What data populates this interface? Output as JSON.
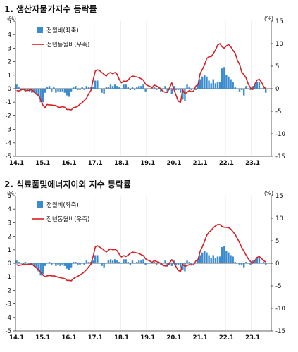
{
  "colors": {
    "bar": "#3b8ccf",
    "line": "#d42026",
    "grid": "#cfcfcf"
  },
  "chart_data": [
    {
      "type": "bar+line",
      "title": "1. 생산자물가지수 등락률",
      "unit_left": "(%)",
      "unit_right": "(%)",
      "x_tick_labels": [
        "14.1",
        "15.1",
        "16.1",
        "17.1",
        "18.1",
        "19.1",
        "20.1",
        "21.1",
        "22.1",
        "23.1"
      ],
      "ylim_left": [
        -5,
        5
      ],
      "ylim_right": [
        -15,
        15
      ],
      "y_ticks_left": [
        5,
        4,
        3,
        2,
        1,
        0,
        -1,
        -2,
        -3,
        -4,
        -5
      ],
      "y_ticks_right": [
        15,
        10,
        5,
        0,
        -5,
        -10,
        -15
      ],
      "legend": [
        "전월비(좌축)",
        "전년동월비(우축)"
      ],
      "series": [
        {
          "name": "전월비(좌축)",
          "axis": "left",
          "type": "bar",
          "values": [
            0.3,
            0.1,
            -0.1,
            -0.1,
            -0.2,
            -0.1,
            -0.2,
            -0.3,
            -0.3,
            -0.4,
            -0.5,
            -1.0,
            -1.0,
            -0.3,
            0.1,
            0.2,
            -0.2,
            0.1,
            -0.3,
            -0.2,
            -0.2,
            -0.2,
            -0.3,
            -0.5,
            -0.6,
            -0.2,
            0.1,
            0.2,
            -0.1,
            -0.1,
            0.1,
            -0.1,
            0.2,
            0.1,
            0.1,
            0.1,
            0.6,
            0.6,
            0.0,
            -0.3,
            -0.4,
            0.1,
            0.1,
            0.3,
            0.2,
            0.3,
            0.2,
            0.1,
            0.0,
            0.3,
            0.3,
            0.1,
            -0.1,
            0.1,
            -0.1,
            0.1,
            0.2,
            0.2,
            0.3,
            -0.2,
            0.0,
            0.0,
            0.0,
            0.1,
            -0.1,
            0.1,
            -0.2,
            0.0,
            0.2,
            -0.2,
            -0.1,
            -0.4,
            0.2,
            -0.1,
            -0.1,
            -0.3,
            -0.8,
            -0.9,
            0.3,
            0.1,
            -0.1,
            0.0,
            -0.1,
            0.3,
            0.7,
            0.9,
            1.0,
            0.9,
            0.6,
            0.4,
            0.7,
            0.4,
            0.5,
            0.5,
            1.5,
            1.6,
            1.0,
            0.9,
            0.7,
            0.5,
            0.1,
            0.0,
            -0.2,
            -0.1,
            -0.5,
            0.2,
            0.0,
            -0.1,
            0.2,
            0.3,
            0.5,
            0.5,
            0.0,
            0.1,
            -0.3
          ]
        },
        {
          "name": "전년동월비(우축)",
          "axis": "right",
          "type": "line",
          "values": [
            -0.4,
            -0.5,
            -0.3,
            -0.1,
            -0.4,
            -0.4,
            -0.3,
            -0.2,
            -0.7,
            -1.2,
            -1.5,
            -2.4,
            -3.6,
            -4.2,
            -3.5,
            -3.6,
            -3.6,
            -3.7,
            -3.7,
            -4.1,
            -4.1,
            -4.0,
            -4.1,
            -4.6,
            -4.6,
            -4.7,
            -4.2,
            -4.1,
            -3.9,
            -3.4,
            -3.1,
            -2.6,
            -2.1,
            -1.1,
            -0.4,
            1.9,
            3.9,
            4.2,
            4.0,
            3.6,
            3.2,
            2.8,
            3.4,
            3.6,
            3.3,
            3.6,
            3.2,
            2.0,
            1.3,
            1.7,
            1.6,
            1.9,
            2.5,
            2.8,
            2.7,
            2.6,
            2.5,
            2.2,
            1.9,
            1.0,
            0.7,
            0.5,
            0.2,
            0.8,
            0.6,
            0.3,
            0.0,
            -0.6,
            -0.8,
            -0.8,
            0.2,
            1.3,
            -0.2,
            -1.5,
            -2.8,
            -3.0,
            -0.3,
            -1.1,
            -0.8,
            -0.4,
            -0.7,
            -0.5,
            0.6,
            0.9,
            3.4,
            4.3,
            5.3,
            6.7,
            7.1,
            7.1,
            7.8,
            8.6,
            9.7,
            10.0,
            9.3,
            9.0,
            9.5,
            9.8,
            9.3,
            8.5,
            7.9,
            6.3,
            5.4,
            3.7,
            3.1,
            2.4,
            1.0,
            0.2,
            -0.2,
            1.0,
            1.9,
            2.1,
            1.5,
            0.5,
            0.0
          ]
        }
      ]
    },
    {
      "type": "bar+line",
      "title": "2. 식료품및에너지이외 지수 등락률",
      "unit_left": "(%)",
      "unit_right": "(%)",
      "x_tick_labels": [
        "14.1",
        "15.1",
        "16.1",
        "17.1",
        "18.1",
        "19.1",
        "20.1",
        "21.1",
        "22.1",
        "23.1"
      ],
      "ylim_left": [
        -5,
        5
      ],
      "ylim_right": [
        -15,
        15
      ],
      "y_ticks_left": [
        5,
        4,
        3,
        2,
        1,
        0,
        -1,
        -2,
        -3,
        -4,
        -5
      ],
      "y_ticks_right": [
        15,
        10,
        5,
        0,
        -5,
        -10,
        -15
      ],
      "legend": [
        "전월비(좌축)",
        "전년동월비(우축)"
      ],
      "series": [
        {
          "name": "전월비(좌축)",
          "axis": "left",
          "type": "bar",
          "values": [
            0.2,
            0.1,
            0.0,
            0.0,
            0.1,
            0.0,
            0.0,
            -0.1,
            -0.2,
            -0.3,
            -0.6,
            -0.9,
            -0.8,
            -0.2,
            0.0,
            0.1,
            -0.1,
            0.0,
            -0.2,
            -0.1,
            -0.2,
            -0.1,
            -0.2,
            -0.4,
            -0.5,
            -0.3,
            0.1,
            0.1,
            -0.1,
            -0.1,
            0.0,
            -0.1,
            0.2,
            0.1,
            0.1,
            0.2,
            0.6,
            0.6,
            0.0,
            -0.2,
            -0.3,
            0.0,
            0.2,
            0.3,
            0.2,
            0.3,
            0.2,
            0.1,
            0.0,
            0.3,
            0.3,
            0.1,
            -0.1,
            0.2,
            0.0,
            0.1,
            0.2,
            0.2,
            0.3,
            -0.1,
            0.0,
            0.0,
            0.0,
            0.1,
            -0.1,
            0.1,
            -0.1,
            0.0,
            0.2,
            -0.2,
            -0.1,
            -0.2,
            0.2,
            -0.1,
            -0.1,
            -0.3,
            -0.5,
            -0.6,
            0.2,
            0.1,
            -0.1,
            0.0,
            0.0,
            0.3,
            0.6,
            0.8,
            0.9,
            0.8,
            0.6,
            0.4,
            0.6,
            0.4,
            0.5,
            0.5,
            1.2,
            1.3,
            0.9,
            0.8,
            0.6,
            0.5,
            0.1,
            0.0,
            -0.1,
            -0.1,
            -0.3,
            0.1,
            0.0,
            -0.1,
            0.2,
            0.2,
            0.4,
            0.4,
            0.0,
            0.1,
            -0.1
          ]
        },
        {
          "name": "전년동월비(우축)",
          "axis": "right",
          "type": "line",
          "values": [
            -0.3,
            -0.5,
            -0.4,
            -0.2,
            -0.3,
            -0.3,
            -0.2,
            -0.2,
            -0.6,
            -1.0,
            -1.4,
            -2.0,
            -2.6,
            -3.0,
            -2.8,
            -2.7,
            -2.8,
            -2.8,
            -2.9,
            -3.1,
            -3.2,
            -3.3,
            -3.4,
            -3.8,
            -3.8,
            -3.9,
            -3.4,
            -3.1,
            -2.9,
            -2.6,
            -2.3,
            -1.9,
            -1.4,
            -0.8,
            -0.2,
            1.5,
            3.6,
            3.9,
            3.6,
            3.3,
            2.9,
            2.5,
            2.9,
            3.2,
            3.0,
            3.1,
            2.8,
            2.0,
            1.4,
            1.7,
            1.5,
            1.8,
            2.2,
            2.5,
            2.4,
            2.3,
            2.2,
            1.9,
            1.7,
            1.0,
            0.7,
            0.5,
            0.2,
            0.6,
            0.4,
            0.2,
            0.0,
            -0.5,
            -0.6,
            -0.6,
            0.1,
            0.8,
            0.1,
            -0.8,
            -1.6,
            -1.8,
            -0.2,
            -0.7,
            -0.5,
            -0.3,
            -0.4,
            -0.3,
            0.5,
            0.8,
            2.7,
            3.7,
            4.9,
            6.2,
            6.9,
            7.3,
            7.9,
            8.3,
            8.6,
            8.6,
            8.2,
            8.0,
            8.0,
            7.9,
            7.6,
            7.0,
            6.4,
            5.5,
            4.6,
            3.5,
            2.7,
            1.8,
            1.0,
            0.4,
            0.0,
            0.6,
            1.3,
            1.5,
            1.1,
            0.6,
            0.3
          ]
        }
      ]
    }
  ]
}
